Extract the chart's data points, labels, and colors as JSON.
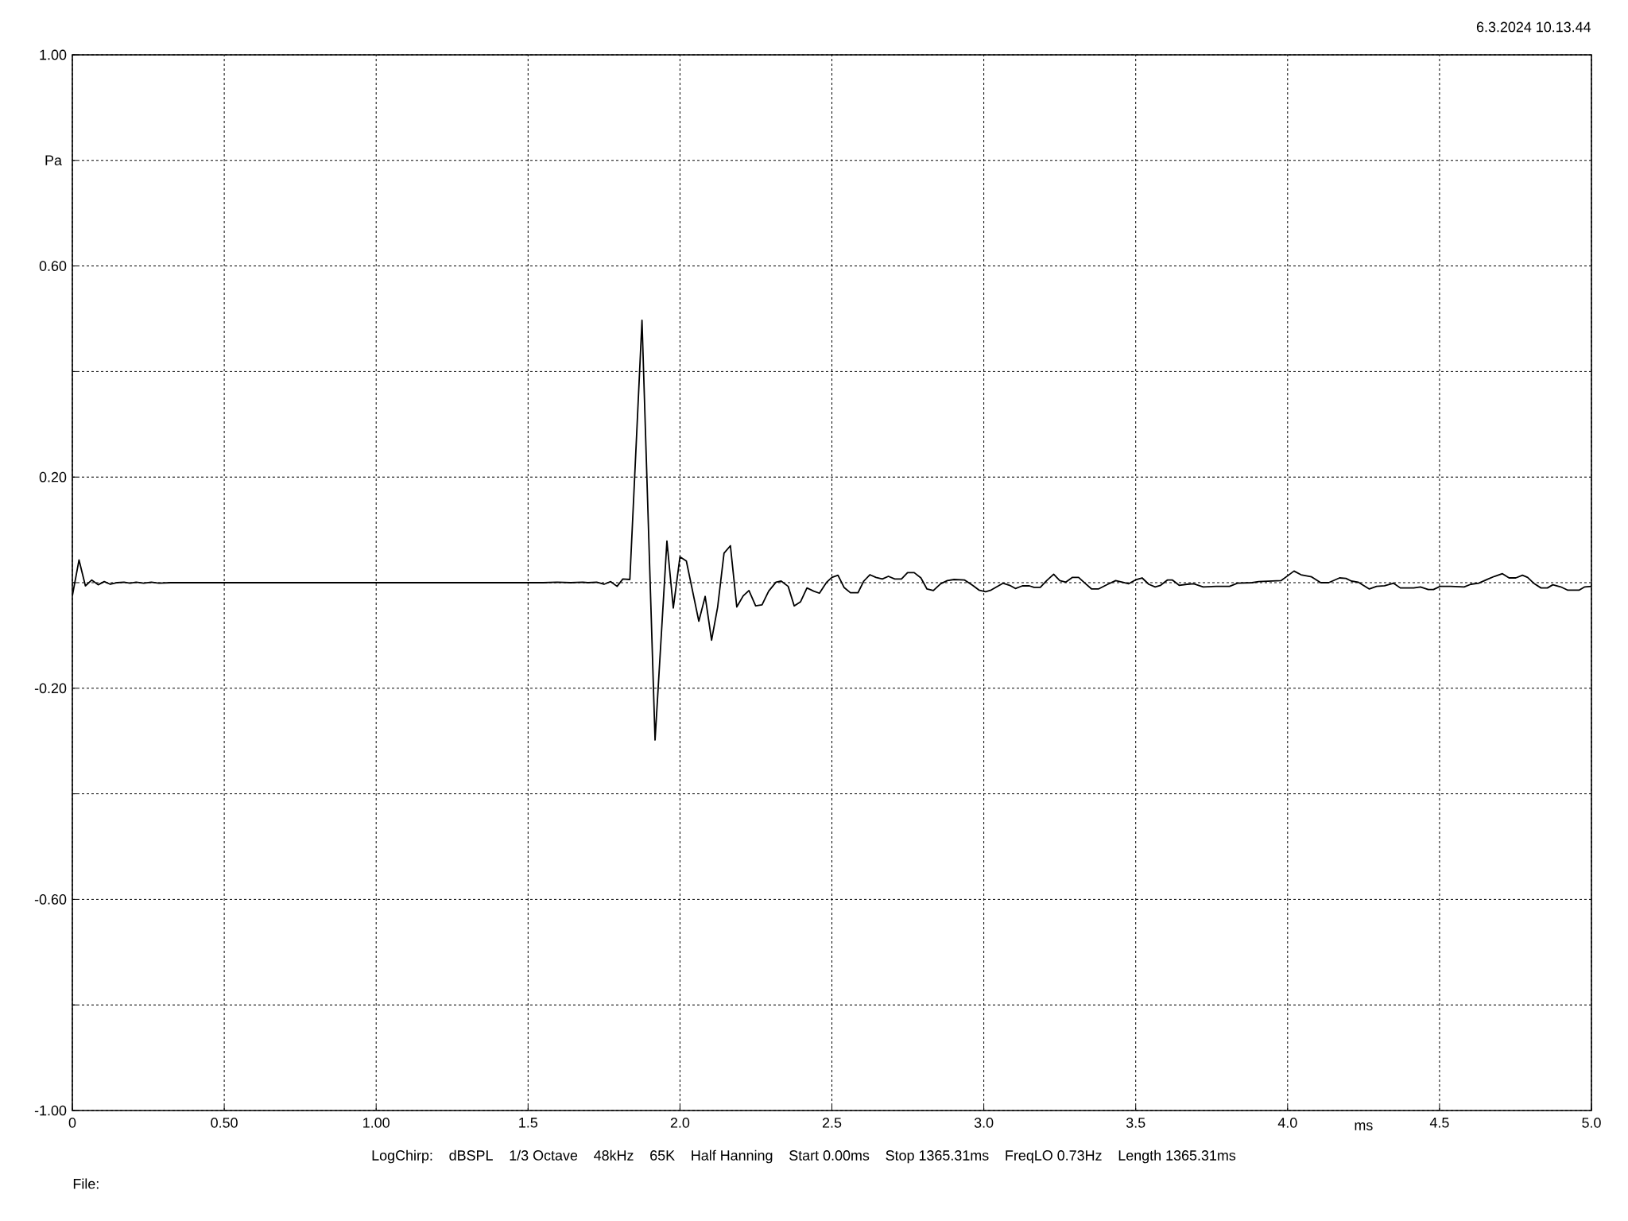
{
  "chart_data": {
    "type": "line",
    "xlabel": "ms",
    "ylabel": "Pa",
    "annotations": [
      "6.3.2024 10.13.44",
      "LogChirp:",
      "dBSPL",
      "1/3 Octave",
      "48kHz",
      "65K",
      "Half Hanning",
      "Start 0.00ms",
      "Stop 1365.31ms",
      "FreqLO 0.73Hz",
      "Length 1365.31ms",
      "File:"
    ],
    "xlim": [
      0,
      5
    ],
    "ylim": [
      -1,
      1
    ],
    "xticks": [
      0,
      {
        "value": 0.5,
        "label": "0.50"
      },
      {
        "value": 1,
        "label": "1.00"
      },
      1.5,
      {
        "value": 2,
        "label": "2.0"
      },
      2.5,
      {
        "value": 3,
        "label": "3.0"
      },
      3.5,
      {
        "value": 4,
        "label": "4.0"
      },
      4.5,
      {
        "value": 5,
        "label": "5.0"
      }
    ],
    "yticks": [
      {
        "value": -1,
        "label": "-1.00"
      },
      {
        "value": -0.8,
        "label": null
      },
      {
        "value": -0.6,
        "label": "-0.60"
      },
      {
        "value": -0.4,
        "label": null
      },
      {
        "value": -0.2,
        "label": "-0.20"
      },
      {
        "value": 0,
        "label": null
      },
      {
        "value": 0.2,
        "label": "0.20"
      },
      {
        "value": 0.4,
        "label": null
      },
      {
        "value": 0.6,
        "label": "0.60"
      },
      {
        "value": 0.8,
        "label": null
      },
      {
        "value": 1,
        "label": "1.00"
      }
    ],
    "grid": true,
    "x": [
      0,
      0.022,
      0.043,
      0.064,
      0.085,
      0.105,
      0.125,
      0.148,
      0.17,
      0.19,
      0.21,
      0.235,
      0.26,
      0.285,
      0.323,
      0.45,
      1.0,
      1.479,
      1.55,
      1.596,
      1.64,
      1.68,
      1.697,
      1.726,
      1.75,
      1.772,
      1.793,
      1.812,
      1.835,
      1.875,
      1.918,
      1.957,
      1.978,
      2.0,
      2.021,
      2.062,
      2.083,
      2.104,
      2.124,
      2.145,
      2.166,
      2.187,
      2.208,
      2.227,
      2.249,
      2.27,
      2.292,
      2.316,
      2.333,
      2.356,
      2.376,
      2.397,
      2.418,
      2.44,
      2.459,
      2.483,
      2.5,
      2.52,
      2.54,
      2.561,
      2.586,
      2.605,
      2.625,
      2.645,
      2.666,
      2.686,
      2.707,
      2.729,
      2.749,
      2.771,
      2.793,
      2.813,
      2.834,
      2.858,
      2.88,
      2.902,
      2.937,
      2.963,
      2.984,
      3.006,
      3.024,
      3.063,
      3.085,
      3.104,
      3.127,
      3.15,
      3.165,
      3.186,
      3.207,
      3.23,
      3.25,
      3.27,
      3.292,
      3.312,
      3.333,
      3.355,
      3.377,
      3.408,
      3.434,
      3.456,
      3.477,
      3.502,
      3.521,
      3.543,
      3.564,
      3.582,
      3.604,
      3.621,
      3.643,
      3.669,
      3.691,
      3.722,
      3.765,
      3.809,
      3.835,
      3.883,
      3.905,
      3.979,
      4.0,
      4.021,
      4.044,
      4.079,
      4.109,
      4.135,
      4.171,
      4.192,
      4.21,
      4.232,
      4.269,
      4.293,
      4.319,
      4.349,
      4.371,
      4.415,
      4.437,
      4.463,
      4.48,
      4.502,
      4.537,
      4.581,
      4.603,
      4.629,
      4.66,
      4.681,
      4.707,
      4.729,
      4.751,
      4.773,
      4.79,
      4.812,
      4.834,
      4.855,
      4.873,
      4.899,
      4.921,
      4.96,
      4.978,
      5.0
    ],
    "series": [
      {
        "color": "#000000",
        "values": [
          -0.025,
          0.043,
          -0.006,
          0.005,
          -0.004,
          0.002,
          -0.003,
          0,
          0.001,
          -0.001,
          0.001,
          -0.001,
          0.001,
          -0.001,
          0,
          0,
          0,
          0,
          0,
          0.001,
          0,
          0.001,
          0,
          0.001,
          -0.003,
          0.002,
          -0.007,
          0.007,
          0.006,
          0.497,
          -0.298,
          0.079,
          -0.048,
          0.049,
          0.041,
          -0.073,
          -0.026,
          -0.109,
          -0.046,
          0.056,
          0.07,
          -0.046,
          -0.025,
          -0.015,
          -0.044,
          -0.042,
          -0.016,
          0.001,
          0.003,
          -0.007,
          -0.044,
          -0.036,
          -0.01,
          -0.016,
          -0.02,
          0.001,
          0.01,
          0.014,
          -0.009,
          -0.019,
          -0.019,
          0.003,
          0.015,
          0.01,
          0.007,
          0.012,
          0.007,
          0.007,
          0.019,
          0.019,
          0.009,
          -0.012,
          -0.015,
          -0.002,
          0.004,
          0.006,
          0.005,
          -0.005,
          -0.014,
          -0.017,
          -0.014,
          -0.001,
          -0.005,
          -0.011,
          -0.006,
          -0.006,
          -0.009,
          -0.009,
          0.004,
          0.016,
          0.004,
          0.001,
          0.01,
          0.01,
          -0.001,
          -0.012,
          -0.012,
          -0.003,
          0.004,
          0.001,
          -0.002,
          0.006,
          0.009,
          -0.003,
          -0.008,
          -0.005,
          0.005,
          0.005,
          -0.005,
          -0.003,
          -0.002,
          -0.008,
          -0.007,
          -0.007,
          -0.001,
          0,
          0.002,
          0.004,
          0.013,
          0.022,
          0.015,
          0.011,
          0,
          0,
          0.009,
          0.008,
          0.003,
          0.001,
          -0.012,
          -0.007,
          -0.006,
          -0.001,
          -0.01,
          -0.01,
          -0.008,
          -0.013,
          -0.013,
          -0.007,
          -0.007,
          -0.008,
          -0.003,
          -0.001,
          0.007,
          0.012,
          0.017,
          0.009,
          0.009,
          0.014,
          0.01,
          -0.002,
          -0.01,
          -0.01,
          -0.004,
          -0.008,
          -0.014,
          -0.014,
          -0.008,
          -0.007
        ]
      }
    ]
  }
}
